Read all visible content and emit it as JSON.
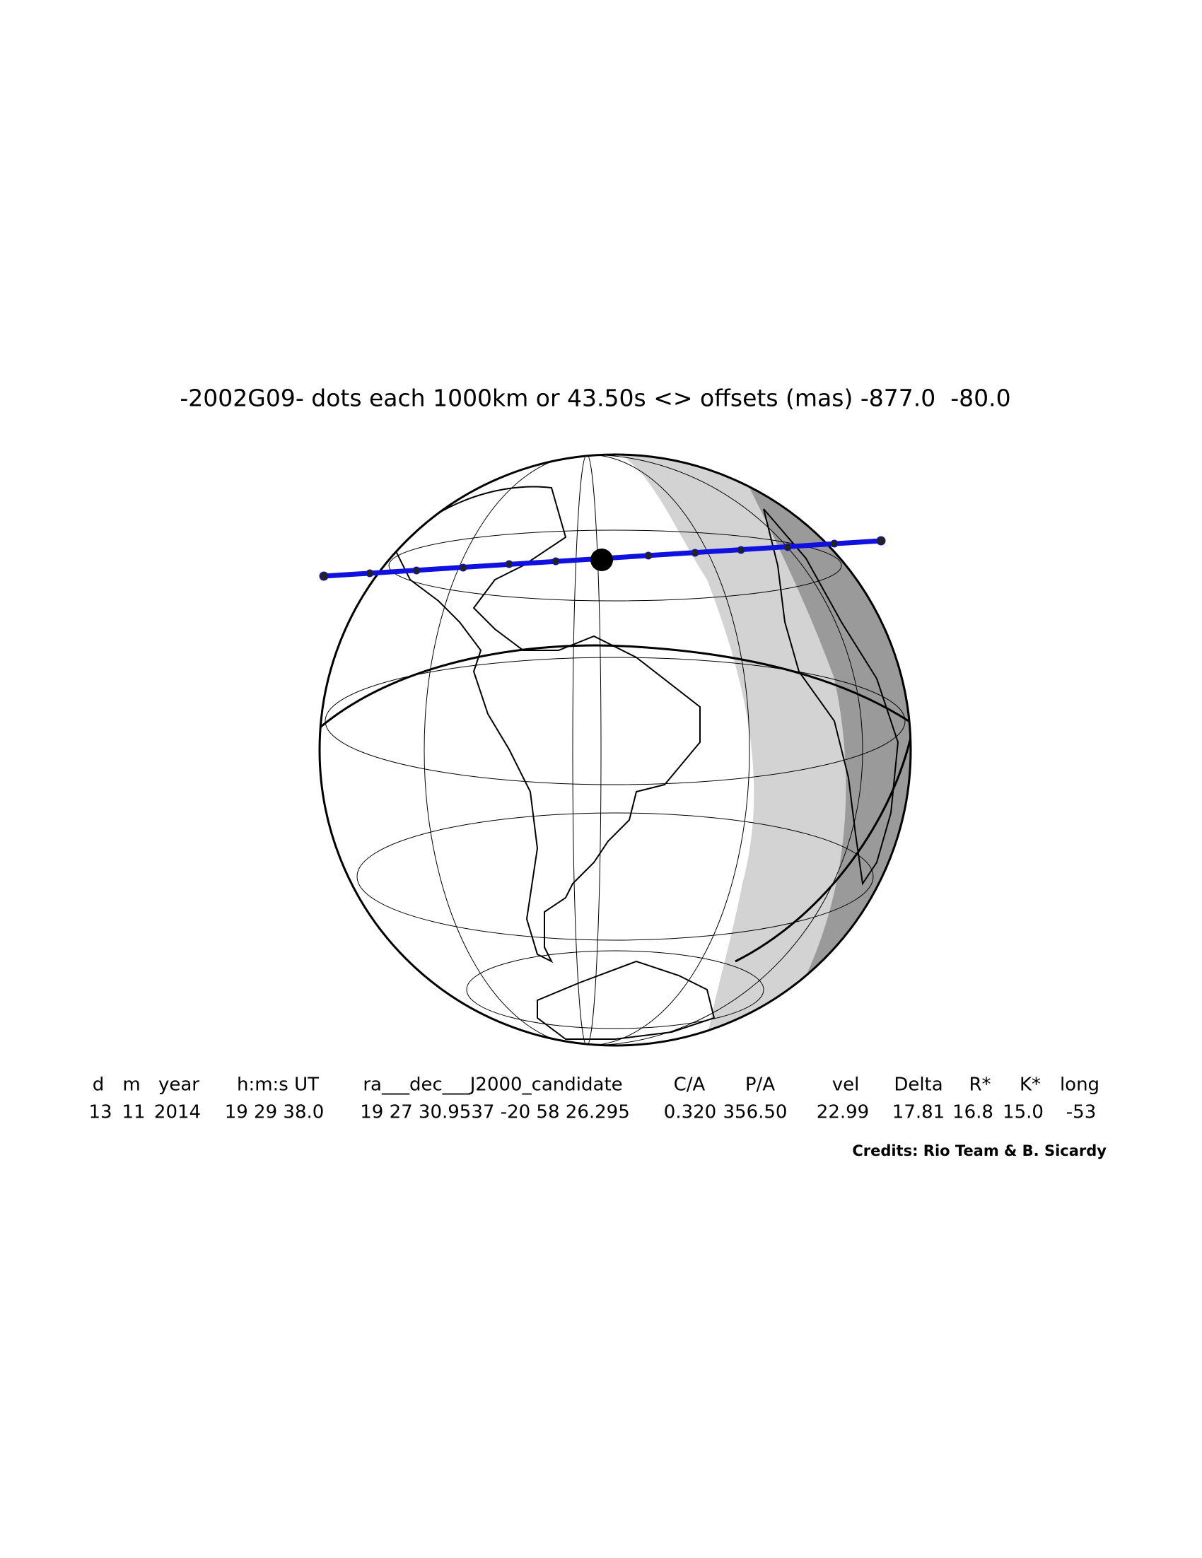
{
  "title": "-2002G09- dots each 1000km or 43.50s <> offsets (mas) -877.0  -80.0",
  "table": {
    "header": [
      "d",
      "m",
      "year",
      "h:m:s UT",
      "ra___dec___J2000_candidate",
      "C/A",
      "P/A",
      "vel",
      "Delta",
      "R*",
      "K*",
      "long"
    ],
    "values": [
      "13",
      "11",
      "2014",
      "19 29 38.0",
      "19 27 30.9537 -20 58 26.295",
      "0.320",
      "356.50",
      "22.99",
      "17.81",
      "16.8",
      "15.0",
      "-53"
    ]
  },
  "credits": "Credits: Rio Team & B. Sicardy"
}
